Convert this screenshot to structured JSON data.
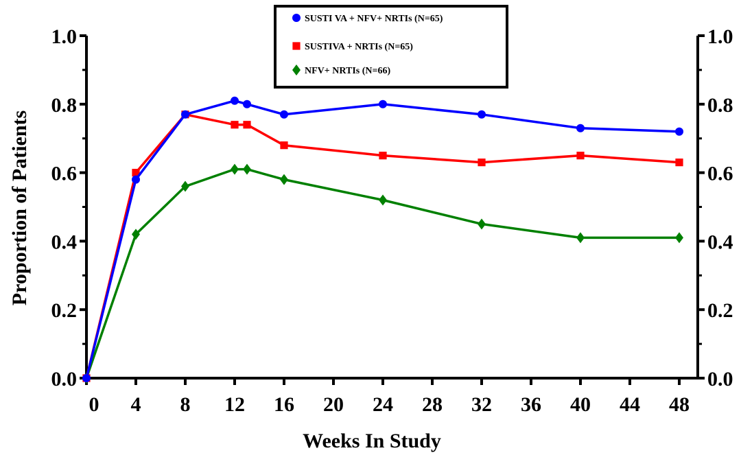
{
  "chart_data": {
    "type": "line",
    "xlabel": "Weeks In Study",
    "ylabel": "Proportion of Patients",
    "xlim": [
      0,
      48
    ],
    "ylim": [
      0.0,
      1.0
    ],
    "x_ticks": [
      "0",
      "4",
      "8",
      "12",
      "16",
      "20",
      "24",
      "28",
      "32",
      "36",
      "40",
      "44",
      "48"
    ],
    "y_ticks": [
      "0.0",
      "0.2",
      "0.4",
      "0.6",
      "0.8",
      "1.0"
    ],
    "y_axis_mirrored": true,
    "grid": false,
    "legend_position": "top-center",
    "series": [
      {
        "name": "SUSTI VA + NFV+ NRTIs (N=65)",
        "color": "#0000ff",
        "marker": "circle",
        "x": [
          0,
          4,
          8,
          12,
          13,
          16,
          24,
          32,
          40,
          48
        ],
        "y": [
          0.0,
          0.58,
          0.77,
          0.81,
          0.8,
          0.77,
          0.8,
          0.77,
          0.73,
          0.72
        ]
      },
      {
        "name": "SUSTIVA + NRTIs (N=65)",
        "color": "#ff0000",
        "marker": "square",
        "x": [
          0,
          4,
          8,
          12,
          13,
          16,
          24,
          32,
          40,
          48
        ],
        "y": [
          0.0,
          0.6,
          0.77,
          0.74,
          0.74,
          0.68,
          0.65,
          0.63,
          0.65,
          0.63
        ]
      },
      {
        "name": "NFV+ NRTIs (N=66)",
        "color": "#008000",
        "marker": "diamond",
        "x": [
          0,
          4,
          8,
          12,
          13,
          16,
          24,
          32,
          40,
          48
        ],
        "y": [
          0.0,
          0.42,
          0.56,
          0.61,
          0.61,
          0.58,
          0.52,
          0.45,
          0.41,
          0.41
        ]
      }
    ]
  }
}
